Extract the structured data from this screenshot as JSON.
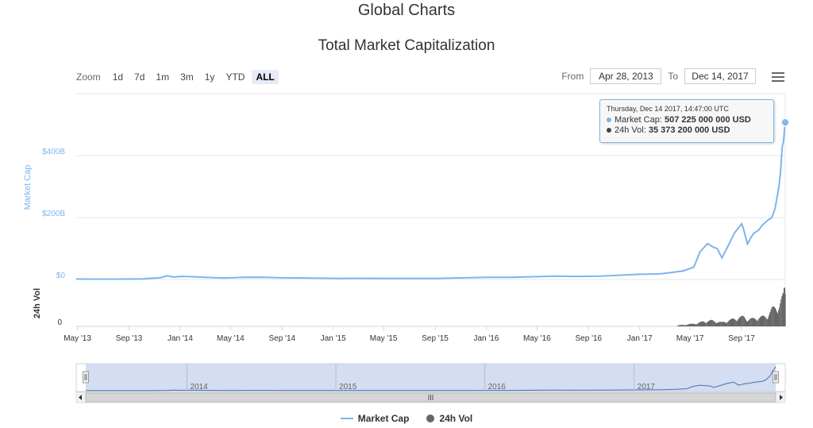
{
  "page": {
    "title": "Global Charts"
  },
  "toolbar": {
    "zoom_label": "Zoom",
    "zoom_buttons": [
      "1d",
      "7d",
      "1m",
      "3m",
      "1y",
      "YTD",
      "ALL"
    ],
    "active_zoom": "ALL",
    "from_label": "From",
    "from_value": "Apr 28, 2013",
    "to_label": "To",
    "to_value": "Dec 14, 2017"
  },
  "tooltip": {
    "header": "Thursday, Dec 14 2017, 14:47:00 UTC",
    "mcap_label": "Market Cap:",
    "mcap_value": "507 225 000 000 USD",
    "vol_label": "24h Vol:",
    "vol_value": "35 373 200 000 USD"
  },
  "colors": {
    "market_cap": "#7cb5ec",
    "volume": "#666666",
    "navigator_fill": "#c6d2ec"
  },
  "chart_data": {
    "type": "line",
    "title": "Total Market Capitalization",
    "ylabel": "Market Cap",
    "ylabel2": "24h Vol",
    "yticks": [
      "$0",
      "$200B",
      "$400B"
    ],
    "ytick_values": [
      0,
      200,
      400
    ],
    "ylim": [
      0,
      600
    ],
    "vol_ticks": [
      "0"
    ],
    "xticks": [
      "May '13",
      "Sep '13",
      "Jan '14",
      "May '14",
      "Sep '14",
      "Jan '15",
      "May '15",
      "Sep '15",
      "Jan '16",
      "May '16",
      "Sep '16",
      "Jan '17",
      "May '17",
      "Sep '17"
    ],
    "x_start": "2013-04-28",
    "x_end": "2017-12-14",
    "series": [
      {
        "name": "Market Cap",
        "unit": "B USD",
        "points": [
          [
            "2013-04-28",
            1.5
          ],
          [
            "2013-06-01",
            1.2
          ],
          [
            "2013-08-01",
            1.3
          ],
          [
            "2013-10-01",
            2
          ],
          [
            "2013-11-15",
            6
          ],
          [
            "2013-12-01",
            12
          ],
          [
            "2013-12-15",
            8
          ],
          [
            "2014-01-05",
            10
          ],
          [
            "2014-02-01",
            9
          ],
          [
            "2014-03-01",
            7
          ],
          [
            "2014-04-15",
            5
          ],
          [
            "2014-06-01",
            7
          ],
          [
            "2014-07-15",
            7.5
          ],
          [
            "2014-09-01",
            5.5
          ],
          [
            "2014-11-01",
            5
          ],
          [
            "2015-01-15",
            3.5
          ],
          [
            "2015-03-01",
            3.8
          ],
          [
            "2015-06-01",
            3.6
          ],
          [
            "2015-09-01",
            3.6
          ],
          [
            "2015-11-10",
            5.5
          ],
          [
            "2016-01-01",
            7
          ],
          [
            "2016-03-01",
            7
          ],
          [
            "2016-06-15",
            11
          ],
          [
            "2016-08-01",
            10
          ],
          [
            "2016-10-01",
            11
          ],
          [
            "2017-01-01",
            17
          ],
          [
            "2017-02-15",
            18
          ],
          [
            "2017-03-15",
            22
          ],
          [
            "2017-04-15",
            28
          ],
          [
            "2017-05-10",
            40
          ],
          [
            "2017-05-25",
            90
          ],
          [
            "2017-06-12",
            116
          ],
          [
            "2017-06-25",
            105
          ],
          [
            "2017-07-05",
            100
          ],
          [
            "2017-07-16",
            70
          ],
          [
            "2017-07-25",
            93
          ],
          [
            "2017-08-15",
            150
          ],
          [
            "2017-09-01",
            180
          ],
          [
            "2017-09-05",
            165
          ],
          [
            "2017-09-15",
            115
          ],
          [
            "2017-09-25",
            140
          ],
          [
            "2017-10-01",
            150
          ],
          [
            "2017-10-12",
            160
          ],
          [
            "2017-10-20",
            175
          ],
          [
            "2017-11-01",
            190
          ],
          [
            "2017-11-12",
            200
          ],
          [
            "2017-11-20",
            230
          ],
          [
            "2017-11-29",
            300
          ],
          [
            "2017-12-03",
            350
          ],
          [
            "2017-12-07",
            430
          ],
          [
            "2017-12-10",
            445
          ],
          [
            "2017-12-12",
            480
          ],
          [
            "2017-12-14",
            507.225
          ]
        ]
      },
      {
        "name": "24h Vol",
        "unit": "B USD",
        "points": [
          [
            "2017-04-01",
            1
          ],
          [
            "2017-05-15",
            3
          ],
          [
            "2017-06-01",
            5
          ],
          [
            "2017-06-20",
            6
          ],
          [
            "2017-07-15",
            4
          ],
          [
            "2017-08-15",
            8
          ],
          [
            "2017-09-05",
            10
          ],
          [
            "2017-09-15",
            7
          ],
          [
            "2017-10-12",
            9
          ],
          [
            "2017-11-01",
            11
          ],
          [
            "2017-11-12",
            18
          ],
          [
            "2017-11-29",
            22
          ],
          [
            "2017-12-07",
            30
          ],
          [
            "2017-12-14",
            35.3732
          ]
        ]
      }
    ],
    "navigator": {
      "year_labels": [
        "2014",
        "2015",
        "2016",
        "2017"
      ]
    },
    "legend": [
      "Market Cap",
      "24h Vol"
    ],
    "legend_position": "bottom-center"
  }
}
